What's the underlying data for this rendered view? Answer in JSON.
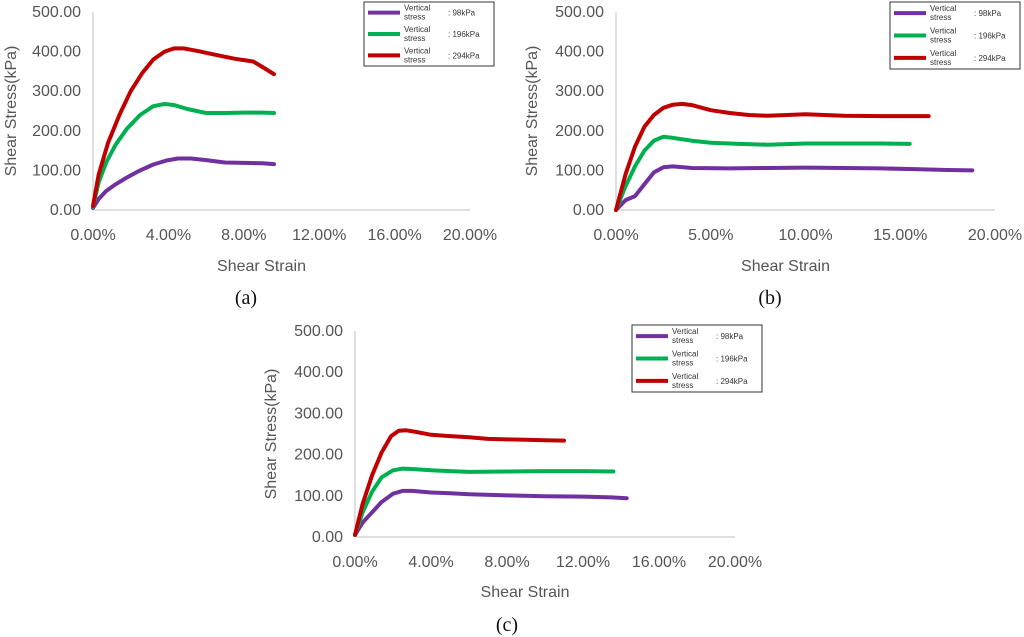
{
  "chart_data": [
    {
      "panel": "a",
      "type": "line",
      "xlabel": "Shear Strain",
      "ylabel": "Shear Stress(kPa)",
      "xlim": [
        0,
        20
      ],
      "ylim": [
        0,
        500
      ],
      "xticks": [
        "0.00%",
        "4.00%",
        "8.00%",
        "12.00%",
        "16.00%",
        "20.00%"
      ],
      "yticks": [
        "0.00",
        "100.00",
        "200.00",
        "300.00",
        "400.00",
        "500.00"
      ],
      "legend": {
        "prefix": "Vertical stress",
        "position": "top-right"
      },
      "series": [
        {
          "name": "98kPa",
          "color": "#7030A0",
          "x": [
            0,
            0.3,
            0.7,
            1.2,
            1.8,
            2.5,
            3.2,
            3.9,
            4.5,
            5.2,
            6.0,
            7.0,
            8.0,
            9.0,
            9.6
          ],
          "y": [
            5,
            28,
            48,
            65,
            82,
            100,
            115,
            125,
            130,
            130,
            126,
            120,
            119,
            118,
            116
          ]
        },
        {
          "name": "196kPa",
          "color": "#00B050",
          "x": [
            0,
            0.3,
            0.7,
            1.2,
            1.8,
            2.5,
            3.2,
            3.8,
            4.3,
            5.0,
            6.0,
            7.0,
            8.0,
            9.0,
            9.6
          ],
          "y": [
            8,
            70,
            120,
            165,
            205,
            240,
            262,
            268,
            265,
            255,
            245,
            245,
            246,
            246,
            245
          ]
        },
        {
          "name": "294kPa",
          "color": "#C00000",
          "x": [
            0,
            0.3,
            0.8,
            1.4,
            2.0,
            2.6,
            3.2,
            3.8,
            4.3,
            4.8,
            5.5,
            6.5,
            7.5,
            8.5,
            9.2,
            9.6
          ],
          "y": [
            10,
            90,
            170,
            240,
            300,
            345,
            380,
            400,
            408,
            408,
            402,
            392,
            382,
            375,
            355,
            343
          ]
        }
      ]
    },
    {
      "panel": "b",
      "type": "line",
      "xlabel": "Shear Strain",
      "ylabel": "Shear Stress(kPa)",
      "xlim": [
        0,
        20
      ],
      "ylim": [
        0,
        500
      ],
      "xticks": [
        "0.00%",
        "5.00%",
        "10.00%",
        "15.00%",
        "20.00%"
      ],
      "yticks": [
        "0.00",
        "100.00",
        "200.00",
        "300.00",
        "400.00",
        "500.00"
      ],
      "legend": {
        "prefix": "Vertical stress",
        "position": "top-right"
      },
      "series": [
        {
          "name": "98kPa",
          "color": "#7030A0",
          "x": [
            0,
            0.5,
            1.0,
            1.5,
            2.0,
            2.5,
            3.0,
            4.0,
            6.0,
            8.0,
            10.0,
            12.0,
            14.0,
            16.0,
            17.5,
            18.8
          ],
          "y": [
            0,
            25,
            35,
            65,
            95,
            108,
            110,
            106,
            105,
            106,
            107,
            106,
            105,
            103,
            101,
            100
          ]
        },
        {
          "name": "196kPa",
          "color": "#00B050",
          "x": [
            0,
            0.5,
            1.0,
            1.5,
            2.0,
            2.5,
            3.0,
            4.0,
            5.0,
            6.5,
            8.0,
            10.0,
            12.0,
            14.0,
            15.5
          ],
          "y": [
            0,
            60,
            110,
            150,
            175,
            185,
            182,
            175,
            170,
            167,
            165,
            168,
            168,
            168,
            167
          ]
        },
        {
          "name": "294kPa",
          "color": "#C00000",
          "x": [
            0,
            0.5,
            1.0,
            1.5,
            2.0,
            2.5,
            3.0,
            3.5,
            4.0,
            5.0,
            6.0,
            7.0,
            8.0,
            10.0,
            12.0,
            14.0,
            16.5
          ],
          "y": [
            0,
            90,
            160,
            210,
            240,
            258,
            266,
            268,
            265,
            252,
            245,
            240,
            238,
            242,
            238,
            237,
            237
          ]
        }
      ]
    },
    {
      "panel": "c",
      "type": "line",
      "xlabel": "Shear Strain",
      "ylabel": "Shear Stress(kPa)",
      "xlim": [
        0,
        20
      ],
      "ylim": [
        0,
        500
      ],
      "xticks": [
        "0.00%",
        "4.00%",
        "8.00%",
        "12.00%",
        "16.00%",
        "20.00%"
      ],
      "yticks": [
        "0.00",
        "100.00",
        "200.00",
        "300.00",
        "400.00",
        "500.00"
      ],
      "legend": {
        "prefix": "Vertical stress",
        "position": "top-right"
      },
      "series": [
        {
          "name": "98kPa",
          "color": "#7030A0",
          "x": [
            0,
            0.4,
            0.9,
            1.4,
            2.0,
            2.5,
            3.0,
            4.0,
            5.0,
            6.0,
            8.0,
            10.0,
            12.0,
            13.5,
            14.3
          ],
          "y": [
            5,
            35,
            60,
            85,
            105,
            112,
            112,
            108,
            106,
            104,
            101,
            99,
            98,
            96,
            94
          ]
        },
        {
          "name": "196kPa",
          "color": "#00B050",
          "x": [
            0,
            0.4,
            0.9,
            1.4,
            2.0,
            2.5,
            3.0,
            4.0,
            5.0,
            6.0,
            8.0,
            10.0,
            12.0,
            13.6
          ],
          "y": [
            5,
            60,
            110,
            145,
            162,
            166,
            165,
            162,
            160,
            158,
            159,
            160,
            160,
            159
          ]
        },
        {
          "name": "294kPa",
          "color": "#C00000",
          "x": [
            0,
            0.4,
            0.9,
            1.4,
            1.9,
            2.3,
            2.7,
            3.2,
            4.0,
            5.0,
            6.0,
            7.0,
            8.0,
            9.0,
            10.0,
            11.0
          ],
          "y": [
            5,
            80,
            150,
            205,
            245,
            258,
            259,
            255,
            248,
            245,
            242,
            238,
            237,
            236,
            235,
            234
          ]
        }
      ]
    }
  ],
  "panel_labels": [
    "(a)",
    "(b)",
    "(c)"
  ]
}
